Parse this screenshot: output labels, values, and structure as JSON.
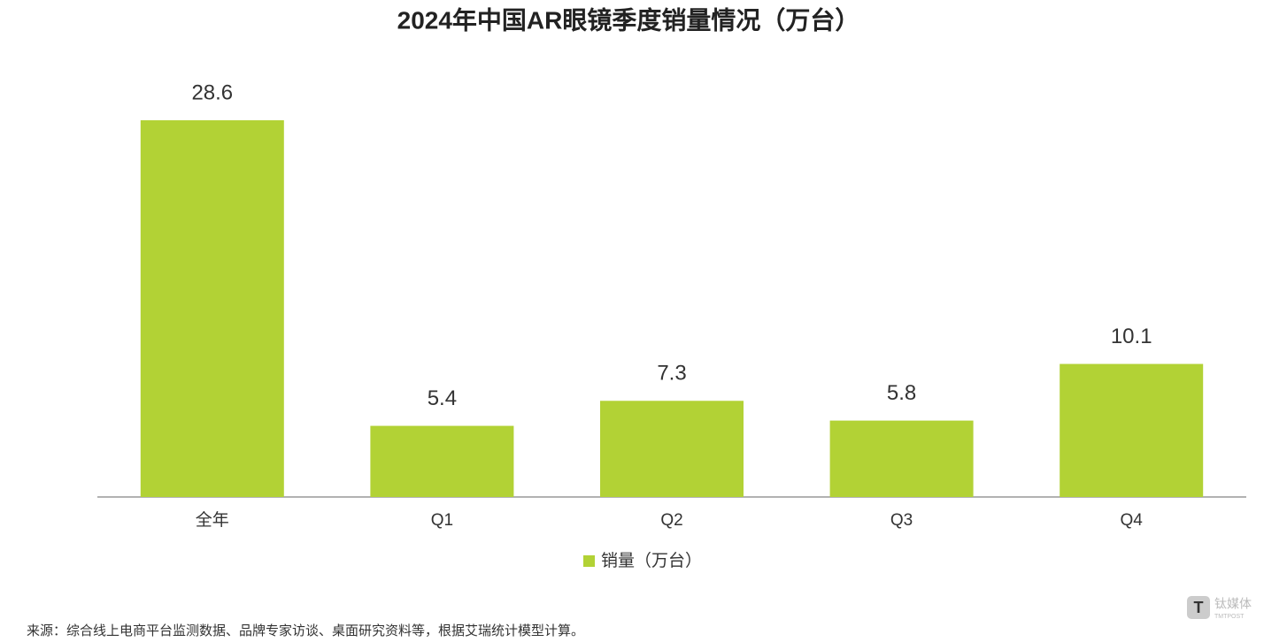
{
  "chart_data": {
    "type": "bar",
    "title": "2024年中国AR眼镜季度销量情况（万台）",
    "categories": [
      "全年",
      "Q1",
      "Q2",
      "Q3",
      "Q4"
    ],
    "series": [
      {
        "name": "销量（万台）",
        "color": "#b2d235",
        "values": [
          28.6,
          5.4,
          7.3,
          5.8,
          10.1
        ]
      }
    ],
    "source": "来源：综合线上电商平台监测数据、品牌专家访谈、桌面研究资料等，根据艾瑞统计模型计算。",
    "watermark": {
      "name": "钛媒体",
      "subtitle": "TMTPOST"
    }
  }
}
